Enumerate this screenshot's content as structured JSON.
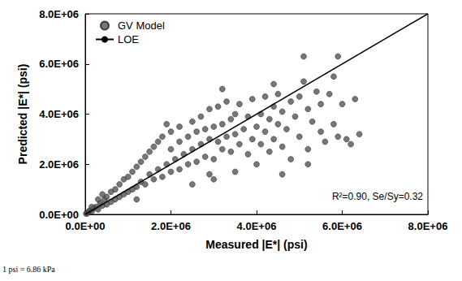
{
  "chart_data": {
    "type": "scatter",
    "x_label": "Measured |E*| (psi)",
    "y_label": "Predicted |E*| (psi)",
    "annotation": "R²=0.90, Se/Sy=0.32",
    "footnote": "1 psi = 6.86 kPa",
    "xlim": [
      0,
      8000000.0
    ],
    "ylim": [
      0,
      8000000.0
    ],
    "xticks": [
      {
        "value": 0,
        "label": "0.0E+00"
      },
      {
        "value": 2000000.0,
        "label": "2.0E+06"
      },
      {
        "value": 4000000.0,
        "label": "4.0E+06"
      },
      {
        "value": 6000000.0,
        "label": "6.0E+06"
      },
      {
        "value": 8000000.0,
        "label": "8.0E+06"
      }
    ],
    "yticks": [
      {
        "value": 0,
        "label": "0.0E+00"
      },
      {
        "value": 2000000.0,
        "label": "2.0E+06"
      },
      {
        "value": 4000000.0,
        "label": "4.0E+06"
      },
      {
        "value": 6000000.0,
        "label": "6.0E+06"
      },
      {
        "value": 8000000.0,
        "label": "8.0E+06"
      }
    ],
    "grid": false,
    "legend": "upper left",
    "series": [
      {
        "name": "GV Model",
        "type": "scatter",
        "color": "#555555",
        "marker": "circle",
        "x": [
          20000.0,
          50000.0,
          80000.0,
          100000.0,
          150000.0,
          200000.0,
          250000.0,
          300000.0,
          350000.0,
          400000.0,
          450000.0,
          500000.0,
          500000.0,
          600000.0,
          600000.0,
          700000.0,
          700000.0,
          800000.0,
          800000.0,
          900000.0,
          900000.0,
          1000000.0,
          1000000.0,
          1100000.0,
          1100000.0,
          1200000.0,
          1200000.0,
          1300000.0,
          1300000.0,
          1400000.0,
          1400000.0,
          1500000.0,
          1500000.0,
          1600000.0,
          1600000.0,
          1700000.0,
          1700000.0,
          1800000.0,
          1800000.0,
          1900000.0,
          2000000.0,
          2000000.0,
          2000000.0,
          2100000.0,
          2200000.0,
          2200000.0,
          2200000.0,
          2300000.0,
          2400000.0,
          2400000.0,
          2500000.0,
          2500000.0,
          2600000.0,
          2600000.0,
          2700000.0,
          2700000.0,
          2800000.0,
          2800000.0,
          2900000.0,
          2900000.0,
          3000000.0,
          3000000.0,
          3100000.0,
          3100000.0,
          3200000.0,
          3200000.0,
          3300000.0,
          3300000.0,
          3400000.0,
          3400000.0,
          3500000.0,
          3500000.0,
          3600000.0,
          3600000.0,
          3700000.0,
          3800000.0,
          3800000.0,
          3900000.0,
          3900000.0,
          4000000.0,
          4000000.0,
          4100000.0,
          4100000.0,
          4200000.0,
          4200000.0,
          4300000.0,
          4300000.0,
          4400000.0,
          4400000.0,
          4500000.0,
          4500000.0,
          4600000.0,
          4600000.0,
          4700000.0,
          4800000.0,
          4800000.0,
          4900000.0,
          5000000.0,
          5000000.0,
          5100000.0,
          5200000.0,
          5200000.0,
          5300000.0,
          5400000.0,
          5500000.0,
          5500000.0,
          5600000.0,
          5700000.0,
          5800000.0,
          5800000.0,
          5900000.0,
          5900000.0,
          6000000.0,
          6100000.0,
          6200000.0,
          6300000.0,
          6400000.0,
          5100000.0,
          3200000.0,
          4400000.0,
          2900000.0,
          3500000.0,
          4600000.0,
          5200000.0,
          1200000.0,
          2500000.0,
          3000000.0,
          1900000.0,
          400000.0,
          300000.0,
          150000.0
        ],
        "values": [
          30000.0,
          40000.0,
          100000.0,
          150000.0,
          120000.0,
          250000.0,
          300000.0,
          200000.0,
          450000.0,
          350000.0,
          600000.0,
          400000.0,
          700000.0,
          500000.0,
          900000.0,
          600000.0,
          1000000.0,
          700000.0,
          1200000.0,
          800000.0,
          1400000.0,
          900000.0,
          1500000.0,
          1000000.0,
          1700000.0,
          1100000.0,
          1900000.0,
          1300000.0,
          2100000.0,
          1200000.0,
          2300000.0,
          1600000.0,
          2500000.0,
          1400000.0,
          2700000.0,
          1800000.0,
          2900000.0,
          1500000.0,
          3100000.0,
          2000000.0,
          1700000.0,
          2600000.0,
          3300000.0,
          2200000.0,
          1800000.0,
          2900000.0,
          3500000.0,
          2400000.0,
          2000000.0,
          3100000.0,
          2600000.0,
          3700000.0,
          2100000.0,
          3300000.0,
          2800000.0,
          3900000.0,
          2300000.0,
          3400000.0,
          3000000.0,
          4200000.0,
          2200000.0,
          3500000.0,
          2900000.0,
          4300000.0,
          2600000.0,
          3600000.0,
          3100000.0,
          4500000.0,
          2500000.0,
          3800000.0,
          3200000.0,
          4000000.0,
          2800000.0,
          4400000.0,
          3400000.0,
          2400000.0,
          3900000.0,
          3000000.0,
          4600000.0,
          3500000.0,
          2000000.0,
          4000000.0,
          2800000.0,
          3300000.0,
          4700000.0,
          2500000.0,
          3800000.0,
          4300000.0,
          3000000.0,
          3600000.0,
          4800000.0,
          2700000.0,
          4100000.0,
          3400000.0,
          4500000.0,
          2200000.0,
          3900000.0,
          4700000.0,
          3100000.0,
          5300000.0,
          4200000.0,
          2600000.0,
          3700000.0,
          4900000.0,
          3300000.0,
          4400000.0,
          2900000.0,
          4800000.0,
          3600000.0,
          5500000.0,
          3100000.0,
          6300000.0,
          4400000.0,
          3000000.0,
          2800000.0,
          4600000.0,
          3200000.0,
          6300000.0,
          5000000.0,
          5200000.0,
          1600000.0,
          1700000.0,
          1600000.0,
          2000000.0,
          600000.0,
          1200000.0,
          1400000.0,
          3600000.0,
          800000.0,
          600000.0,
          300000.0
        ]
      },
      {
        "name": "LOE",
        "type": "line",
        "color": "#000000",
        "line_style": "solid",
        "x": [
          0,
          8000000.0
        ],
        "values": [
          0,
          8000000.0
        ]
      }
    ]
  }
}
